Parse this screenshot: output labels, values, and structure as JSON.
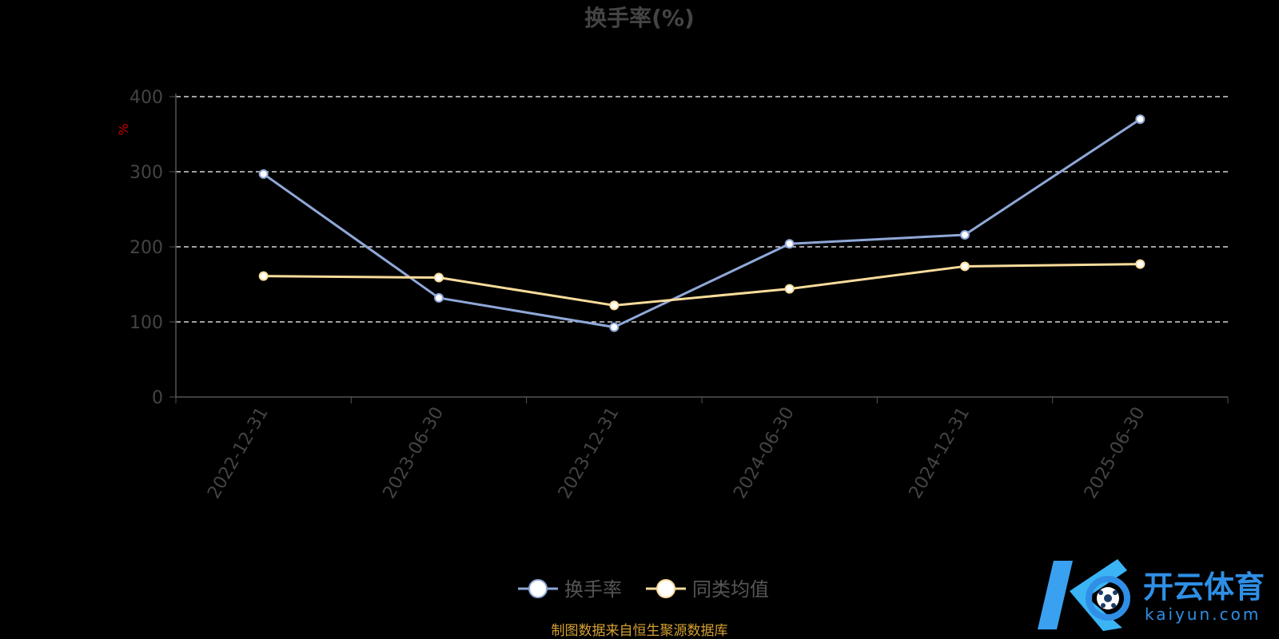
{
  "chart_data": {
    "type": "line",
    "title": "换手率(%)",
    "y_unit": "%",
    "categories": [
      "2022-12-31",
      "2023-06-30",
      "2023-12-31",
      "2024-06-30",
      "2024-12-31",
      "2025-06-30"
    ],
    "ylim": [
      0,
      400
    ],
    "y_ticks": [
      "0",
      "100",
      "200",
      "300",
      "400"
    ],
    "grid": "horizontal dashed",
    "legend_position": "bottom-center",
    "series": [
      {
        "name": "换手率",
        "color": "#8fa8d8",
        "values": [
          297,
          132,
          93,
          204,
          216,
          370
        ]
      },
      {
        "name": "同类均值",
        "color": "#f9dc9a",
        "values": [
          161,
          159,
          122,
          144,
          174,
          177
        ]
      }
    ]
  },
  "source": "制图数据来自恒生聚源数据库",
  "watermark": {
    "name": "开云体育",
    "domain": "kaiyun.com"
  }
}
